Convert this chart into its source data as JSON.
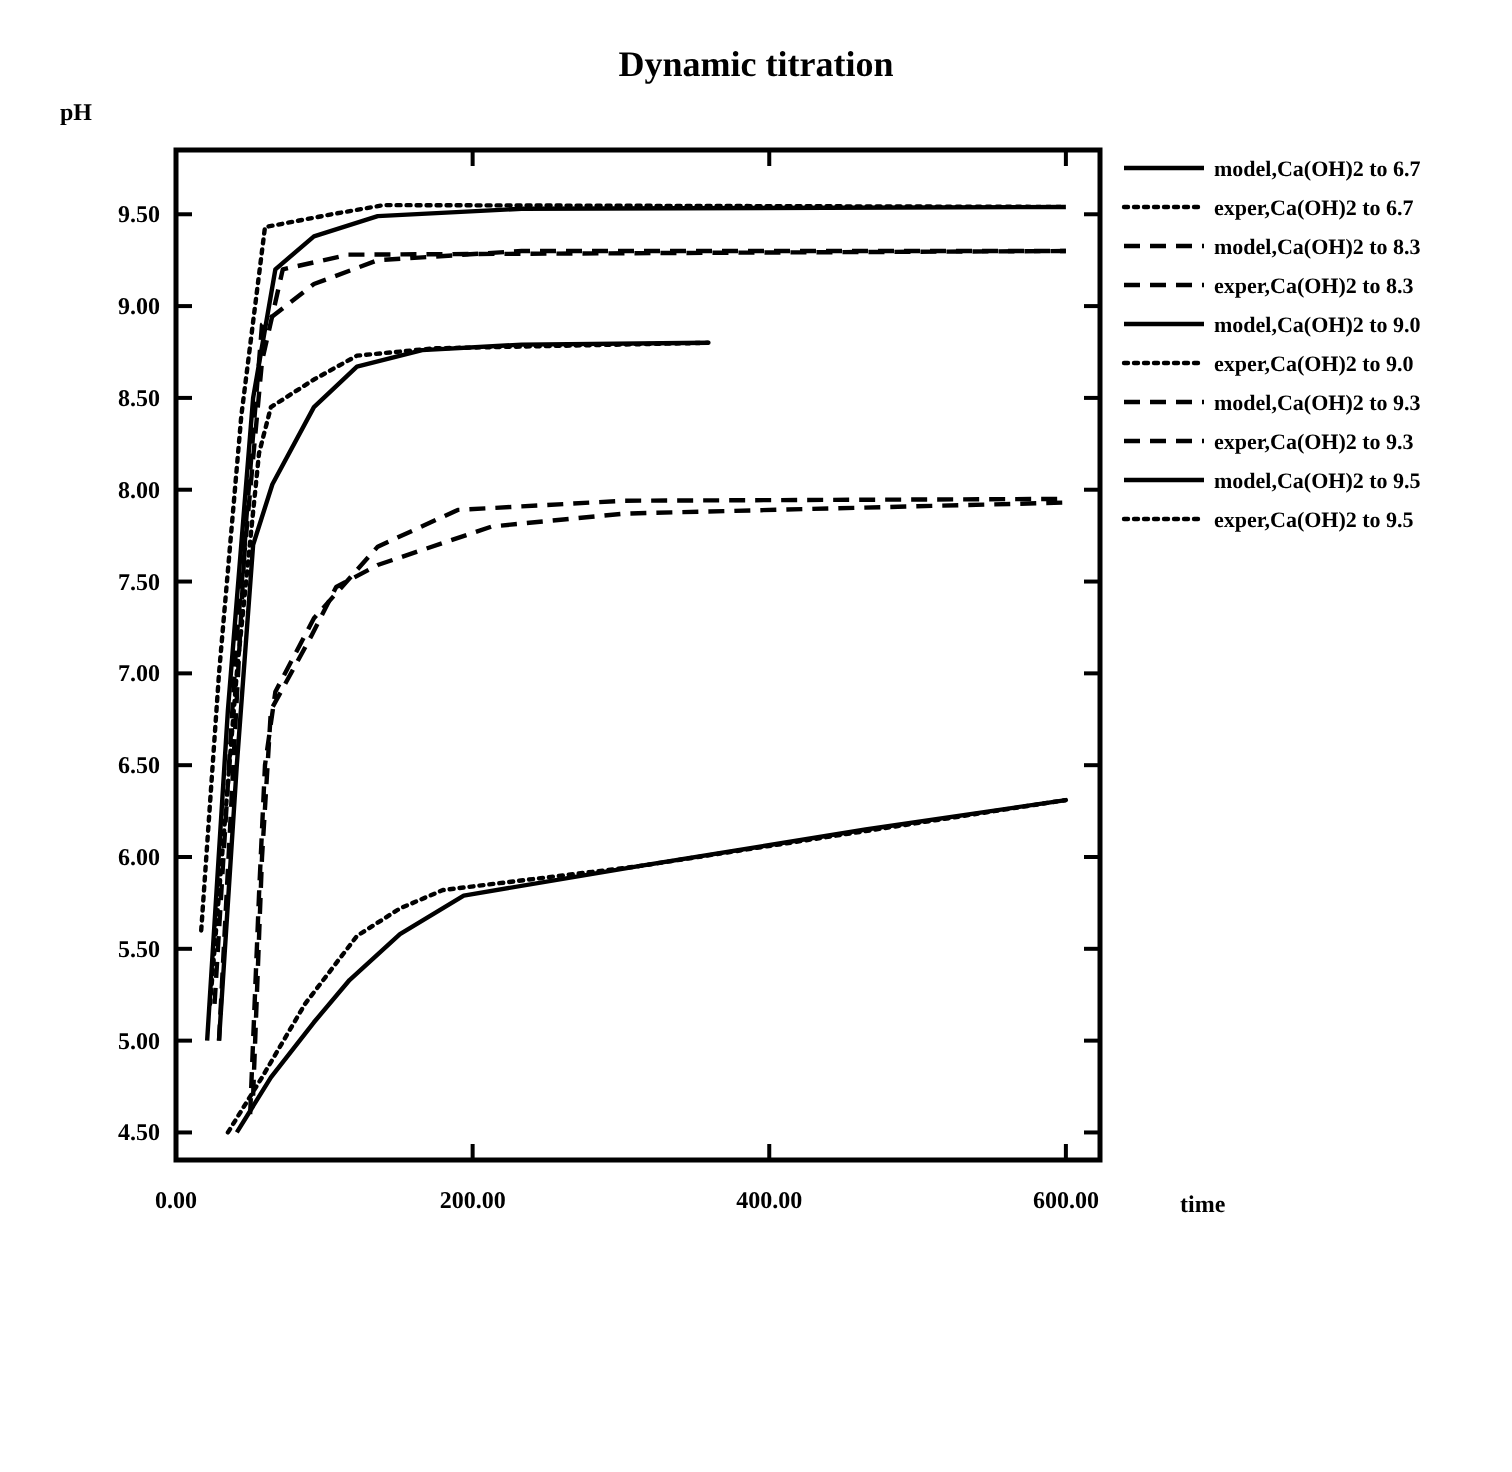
{
  "chart_data": {
    "type": "line",
    "title": "Dynamic titration",
    "xlabel": "time",
    "ylabel": "pH",
    "xlim": [
      0,
      623
    ],
    "ylim": [
      4.35,
      9.85
    ],
    "xticks": [
      {
        "value": 0,
        "label": "0.00"
      },
      {
        "value": 200,
        "label": "200.00"
      },
      {
        "value": 400,
        "label": "400.00"
      },
      {
        "value": 600,
        "label": "600.00"
      }
    ],
    "yticks": [
      {
        "value": 4.5,
        "label": "4.50"
      },
      {
        "value": 5,
        "label": "5.00"
      },
      {
        "value": 5.5,
        "label": "5.50"
      },
      {
        "value": 6,
        "label": "6.00"
      },
      {
        "value": 6.5,
        "label": "6.50"
      },
      {
        "value": 7,
        "label": "7.00"
      },
      {
        "value": 7.5,
        "label": "7.50"
      },
      {
        "value": 8,
        "label": "8.00"
      },
      {
        "value": 8.5,
        "label": "8.50"
      },
      {
        "value": 9,
        "label": "9.00"
      },
      {
        "value": 9.5,
        "label": "9.50"
      }
    ],
    "grid": false,
    "legend": "right",
    "marker": "none",
    "series": [
      {
        "name": "model,Ca(OH)2 to 6.7",
        "color": "#000000",
        "line_style": "solid",
        "x": [
          41,
          64,
          93,
          117,
          151,
          194,
          312,
          465,
          600
        ],
        "values": [
          4.5,
          4.8,
          5.1,
          5.33,
          5.58,
          5.79,
          5.95,
          6.15,
          6.31
        ]
      },
      {
        "name": "exper,Ca(OH)2 to 6.7",
        "color": "#000000",
        "line_style": "dotted",
        "x": [
          35,
          58,
          87,
          122,
          151,
          180,
          312,
          600
        ],
        "values": [
          4.5,
          4.8,
          5.2,
          5.57,
          5.72,
          5.82,
          5.95,
          6.31
        ]
      },
      {
        "name": "model,Ca(OH)2 to 8.3",
        "color": "#000000",
        "line_style": "dashed",
        "x": [
          50,
          56,
          60,
          67,
          93,
          136,
          190,
          302,
          600
        ],
        "values": [
          4.6,
          5.8,
          6.5,
          6.9,
          7.3,
          7.69,
          7.89,
          7.94,
          7.95
        ]
      },
      {
        "name": "exper,Ca(OH)2 to 8.3",
        "color": "#000000",
        "line_style": "dashed",
        "x": [
          52,
          58,
          64,
          91,
          108,
          136,
          213,
          302,
          600
        ],
        "values": [
          4.7,
          6.0,
          6.8,
          7.2,
          7.47,
          7.59,
          7.8,
          7.87,
          7.93
        ]
      },
      {
        "name": "model,Ca(OH)2 to 9.0",
        "color": "#000000",
        "line_style": "solid",
        "x": [
          29,
          41,
          52,
          65,
          93,
          122,
          166,
          233,
          359
        ],
        "values": [
          5.0,
          6.5,
          7.7,
          8.03,
          8.45,
          8.67,
          8.76,
          8.79,
          8.8
        ]
      },
      {
        "name": "exper,Ca(OH)2 to 9.0",
        "color": "#000000",
        "line_style": "dotted",
        "x": [
          23,
          41,
          56,
          64,
          93,
          122,
          174,
          359
        ],
        "values": [
          5.2,
          7.0,
          8.2,
          8.45,
          8.6,
          8.73,
          8.77,
          8.8
        ]
      },
      {
        "name": "model,Ca(OH)2 to 9.3",
        "color": "#000000",
        "line_style": "dashed",
        "x": [
          26,
          41,
          58,
          72,
          116,
          600
        ],
        "values": [
          5.2,
          7.2,
          8.7,
          9.2,
          9.28,
          9.3
        ]
      },
      {
        "name": "exper,Ca(OH)2 to 9.3",
        "color": "#000000",
        "line_style": "dashed",
        "x": [
          29,
          47,
          58,
          93,
          136,
          233,
          600
        ],
        "values": [
          5.0,
          7.8,
          8.9,
          9.12,
          9.25,
          9.3,
          9.3
        ]
      },
      {
        "name": "model,Ca(OH)2 to 9.5",
        "color": "#000000",
        "line_style": "solid",
        "x": [
          21,
          35,
          52,
          67,
          93,
          136,
          233,
          600
        ],
        "values": [
          5.0,
          6.8,
          8.5,
          9.2,
          9.38,
          9.49,
          9.53,
          9.54
        ]
      },
      {
        "name": "exper,Ca(OH)2 to 9.5",
        "color": "#000000",
        "line_style": "dotted",
        "x": [
          17,
          29,
          44,
          60,
          105,
          140,
          600
        ],
        "values": [
          5.6,
          7.0,
          8.4,
          9.43,
          9.5,
          9.55,
          9.54
        ]
      }
    ]
  }
}
